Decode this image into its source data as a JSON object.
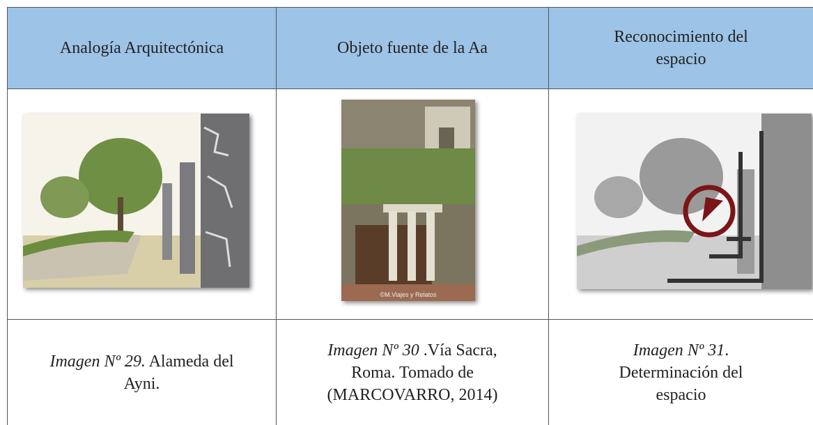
{
  "table": {
    "header": [
      "Analogía Arquitectónica",
      "Objeto fuente de la Aa",
      "Reconocimiento del espacio"
    ],
    "captions": [
      {
        "italic": "Imagen Nº 29.",
        "text": " Alameda del Ayni."
      },
      {
        "italic": "Imagen Nº 30",
        "text": " .Vía Sacra, Roma. Tomado de (MARCOVARRO, 2014)"
      },
      {
        "italic": "Imagen Nº 31",
        "text": ". Determinación del espacio"
      }
    ],
    "watermark": "©M.Viajes y Relatos"
  }
}
